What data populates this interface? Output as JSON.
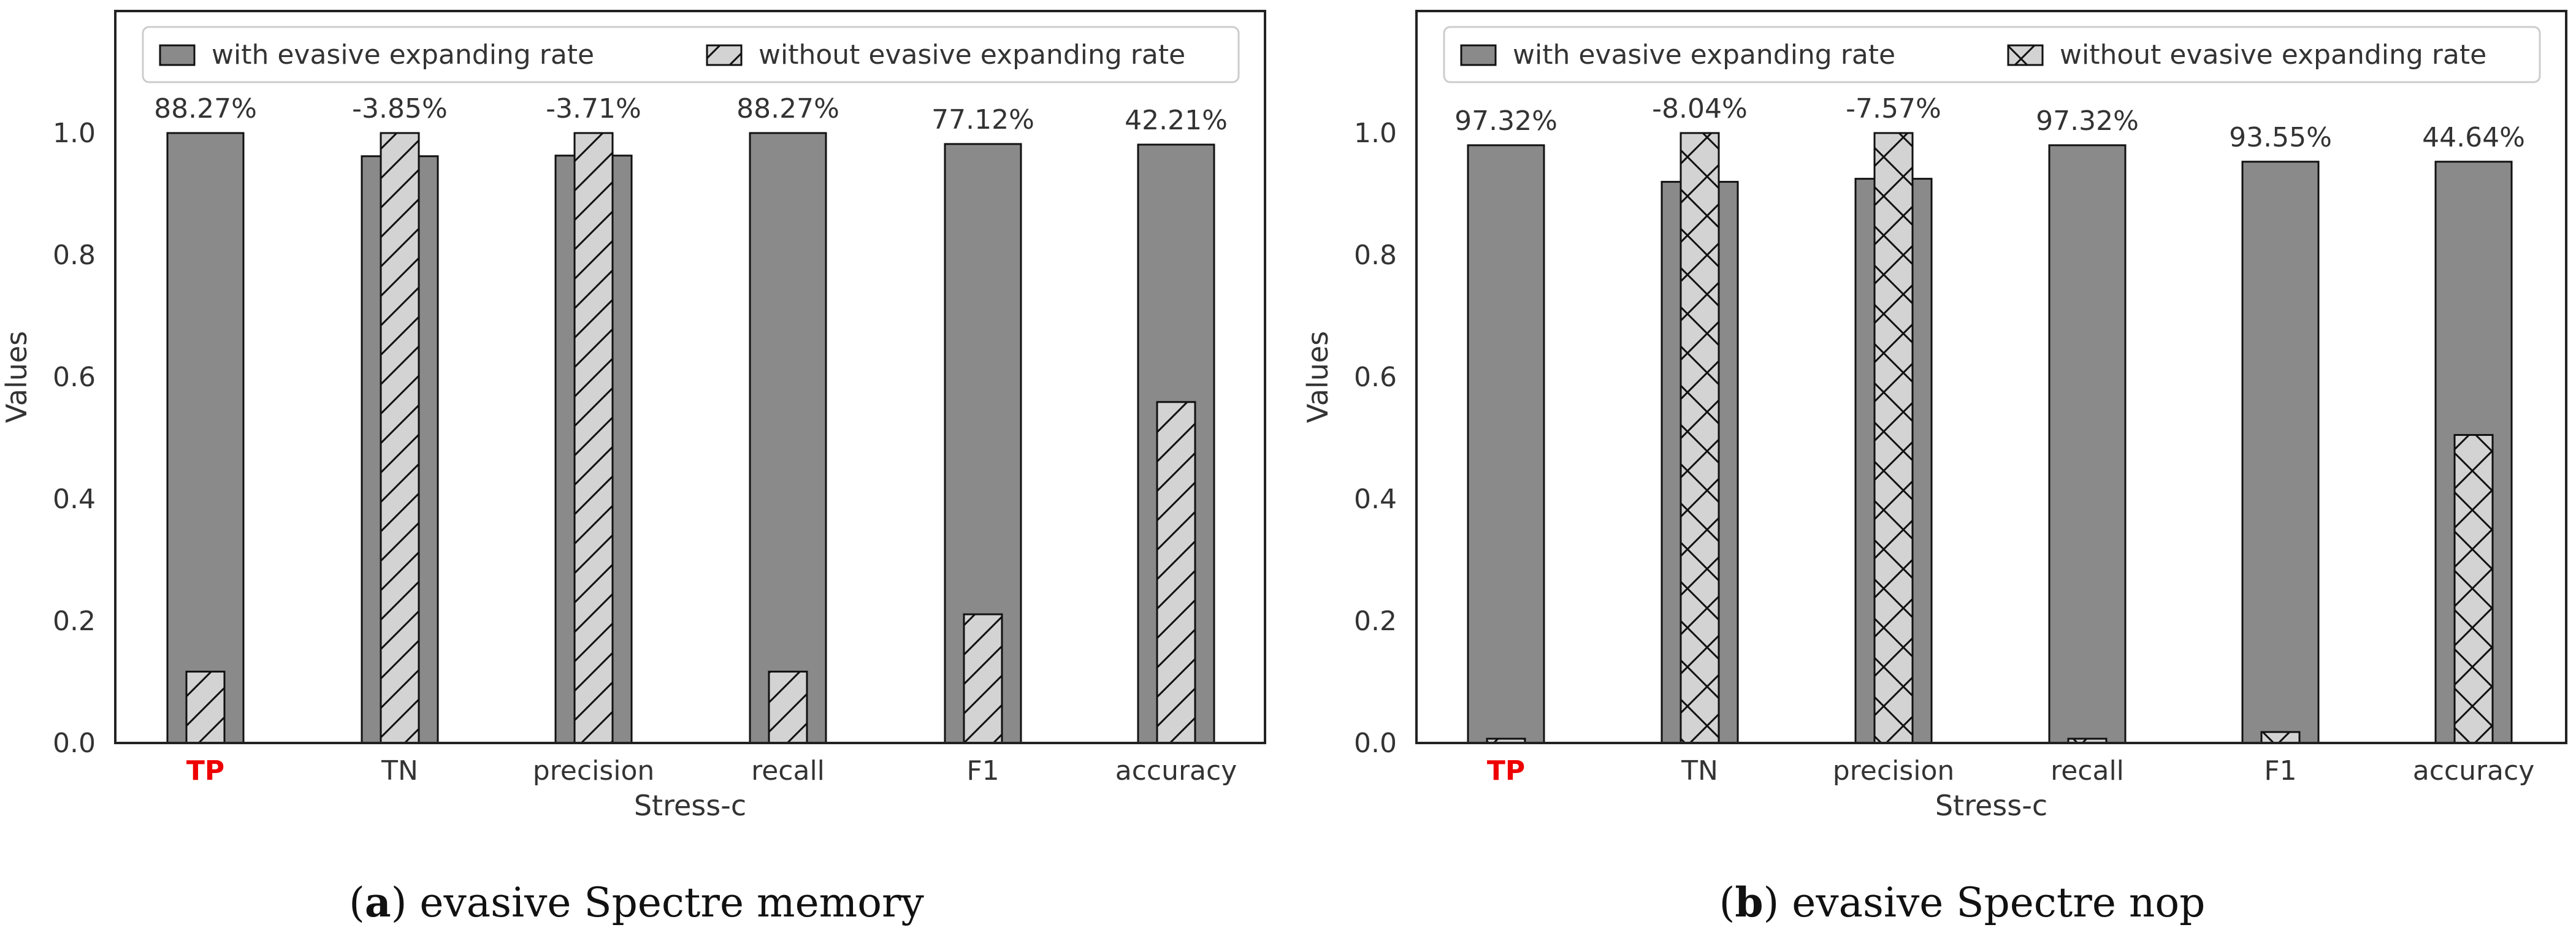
{
  "chart_data": [
    {
      "type": "bar",
      "caption_letter": "a",
      "caption_text": ") evasive Spectre memory",
      "caption_open": "(",
      "xlabel": "Stress-c",
      "ylabel": "Values",
      "ylim": [
        0,
        1.2
      ],
      "yticks": [
        "0.0",
        "0.2",
        "0.4",
        "0.6",
        "0.8",
        "1.0"
      ],
      "ytick_values": [
        0,
        0.2,
        0.4,
        0.6,
        0.8,
        1.0
      ],
      "categories": [
        "TP",
        "TN",
        "precision",
        "recall",
        "F1",
        "accuracy"
      ],
      "highlight_category": "TP",
      "highlight_color": "#ee0000",
      "hatch": "diagonal",
      "series": [
        {
          "name": "with evasive expanding rate",
          "color": "#8a8a8a",
          "values": [
            1.0,
            0.962,
            0.963,
            1.0,
            0.982,
            0.981
          ]
        },
        {
          "name": "without evasive expanding rate",
          "color": "#d3d3d3",
          "values": [
            0.117,
            1.0,
            1.0,
            0.117,
            0.211,
            0.559
          ]
        }
      ],
      "bar_labels": [
        "88.27%",
        "-3.85%",
        "-3.71%",
        "88.27%",
        "77.12%",
        "42.21%"
      ],
      "legend_position": "top"
    },
    {
      "type": "bar",
      "caption_letter": "b",
      "caption_text": ") evasive Spectre nop",
      "caption_open": "(",
      "xlabel": "Stress-c",
      "ylabel": "Values",
      "ylim": [
        0,
        1.2
      ],
      "yticks": [
        "0.0",
        "0.2",
        "0.4",
        "0.6",
        "0.8",
        "1.0"
      ],
      "ytick_values": [
        0,
        0.2,
        0.4,
        0.6,
        0.8,
        1.0
      ],
      "categories": [
        "TP",
        "TN",
        "precision",
        "recall",
        "F1",
        "accuracy"
      ],
      "highlight_category": "TP",
      "highlight_color": "#ee0000",
      "hatch": "cross",
      "series": [
        {
          "name": "with evasive expanding rate",
          "color": "#8a8a8a",
          "values": [
            0.98,
            0.92,
            0.925,
            0.98,
            0.953,
            0.953
          ]
        },
        {
          "name": "without evasive expanding rate",
          "color": "#d3d3d3",
          "values": [
            0.007,
            1.0,
            1.0,
            0.007,
            0.018,
            0.505
          ]
        }
      ],
      "bar_labels": [
        "97.32%",
        "-8.04%",
        "-7.57%",
        "97.32%",
        "93.55%",
        "44.64%"
      ],
      "legend_position": "top"
    }
  ]
}
